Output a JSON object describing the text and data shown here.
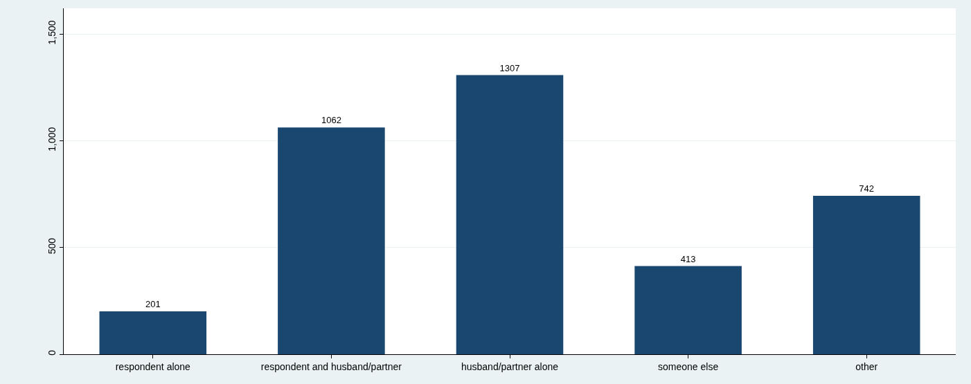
{
  "chart_data": {
    "type": "bar",
    "categories": [
      "respondent alone",
      "respondent and husband/partner",
      "husband/partner alone",
      "someone else",
      "other"
    ],
    "values": [
      201,
      1062,
      1307,
      413,
      742
    ],
    "color": "#1a476f",
    "ylim": [
      0,
      1620
    ],
    "yticks": [
      0,
      500,
      {
        "value": 1000,
        "label": "1,000"
      },
      {
        "value": 1500,
        "label": "1,500"
      }
    ],
    "grid": "y",
    "data_labels": true,
    "legend": false
  }
}
